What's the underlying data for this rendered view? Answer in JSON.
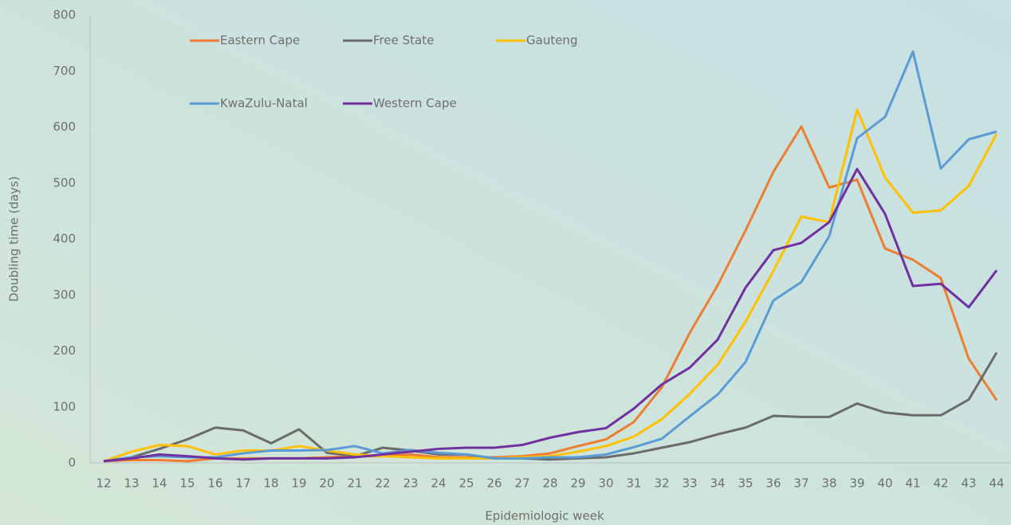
{
  "chart_data": {
    "type": "line",
    "y_label": "Doubling time (days)",
    "x_label": "Epidemiologic week",
    "categories": [
      12,
      13,
      14,
      15,
      16,
      17,
      18,
      19,
      20,
      21,
      22,
      23,
      24,
      25,
      26,
      27,
      28,
      29,
      30,
      31,
      32,
      33,
      34,
      35,
      36,
      37,
      38,
      39,
      40,
      41,
      42,
      43,
      44
    ],
    "ylim": [
      0,
      800
    ],
    "yticks": [
      0,
      100,
      200,
      300,
      400,
      500,
      600,
      700,
      800
    ],
    "legend": "top-left",
    "series": [
      {
        "name": "Eastern Cape",
        "color": "#ED7D31",
        "values": [
          3,
          5,
          5,
          3,
          8,
          8,
          8,
          8,
          10,
          12,
          12,
          15,
          10,
          10,
          10,
          12,
          17,
          30,
          42,
          73,
          135,
          232,
          317,
          415,
          520,
          601,
          492,
          506,
          383,
          363,
          330,
          186,
          112
        ]
      },
      {
        "name": "Free State",
        "color": "#6b6b6b",
        "values": [
          3,
          10,
          25,
          42,
          63,
          58,
          35,
          60,
          18,
          12,
          27,
          22,
          15,
          15,
          8,
          8,
          6,
          8,
          10,
          17,
          27,
          37,
          51,
          63,
          84,
          82,
          82,
          106,
          90,
          85,
          85,
          113,
          197
        ]
      },
      {
        "name": "Gauteng",
        "color": "#FFC000",
        "values": [
          3,
          20,
          32,
          30,
          15,
          22,
          22,
          30,
          22,
          15,
          12,
          10,
          8,
          8,
          8,
          10,
          12,
          20,
          30,
          47,
          78,
          123,
          175,
          252,
          343,
          440,
          430,
          631,
          510,
          447,
          451,
          495,
          588
        ]
      },
      {
        "name": "KwaZulu-Natal",
        "color": "#5B9BD5",
        "values": [
          3,
          10,
          12,
          10,
          10,
          17,
          22,
          22,
          23,
          30,
          17,
          23,
          18,
          15,
          8,
          8,
          10,
          10,
          15,
          28,
          43,
          83,
          122,
          180,
          290,
          323,
          405,
          580,
          618,
          735,
          526,
          578,
          592
        ]
      },
      {
        "name": "Western Cape",
        "color": "#7030A0",
        "values": [
          3,
          8,
          15,
          12,
          8,
          6,
          8,
          8,
          8,
          10,
          15,
          20,
          25,
          27,
          27,
          32,
          45,
          55,
          62,
          97,
          140,
          170,
          220,
          313,
          380,
          393,
          430,
          525,
          445,
          316,
          320,
          278,
          344
        ]
      }
    ]
  }
}
